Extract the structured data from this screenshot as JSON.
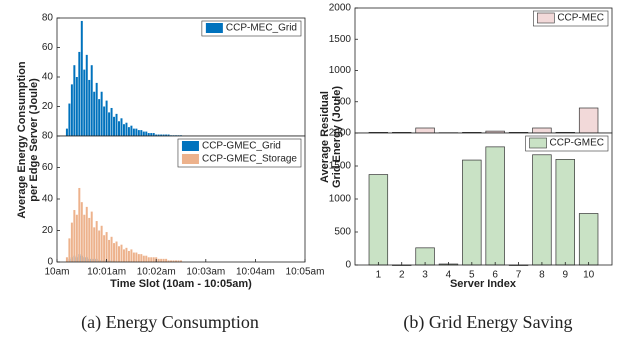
{
  "chart_data": [
    {
      "type": "bar",
      "ylabel": [
        "Average Energy Consumption",
        "per Edge Server (Joule)"
      ],
      "xlim": [
        0,
        5
      ],
      "ylim": [
        0,
        80
      ],
      "yticks": [
        20,
        40,
        60,
        80
      ],
      "x": [
        0.2,
        0.25,
        0.3,
        0.35,
        0.4,
        0.45,
        0.5,
        0.55,
        0.6,
        0.65,
        0.7,
        0.75,
        0.8,
        0.85,
        0.9,
        0.95,
        1.0,
        1.05,
        1.1,
        1.15,
        1.2,
        1.25,
        1.3,
        1.35,
        1.4,
        1.45,
        1.5,
        1.55,
        1.6,
        1.65,
        1.7,
        1.75,
        1.8,
        1.85,
        1.9,
        1.95,
        2.0,
        2.05,
        2.1,
        2.15,
        2.2,
        2.25,
        2.3,
        2.35,
        2.4,
        2.45,
        2.5
      ],
      "series": [
        {
          "name": "CCP-MEC_Grid",
          "color": "#0072bd",
          "values": [
            5,
            22,
            35,
            48,
            40,
            57,
            78,
            45,
            55,
            38,
            48,
            30,
            36,
            25,
            30,
            20,
            24,
            16,
            19,
            13,
            15,
            10,
            12,
            8,
            9,
            6,
            7,
            5,
            5,
            4,
            4,
            3,
            3,
            2,
            2,
            2,
            1,
            1,
            1,
            1,
            1,
            1,
            0.5,
            0.5,
            0.5,
            0.5,
            0.5
          ]
        }
      ]
    },
    {
      "type": "bar",
      "xlabel": "Time Slot (10am - 10:05am)",
      "caption": "(a) Energy Consumption",
      "xlim": [
        0,
        5
      ],
      "ylim": [
        0,
        80
      ],
      "yticks": [
        0,
        20,
        40,
        60,
        80
      ],
      "xticks": [
        {
          "value": 0,
          "label": "10am"
        },
        {
          "value": 1,
          "label": "10:01am"
        },
        {
          "value": 2,
          "label": "10:02am"
        },
        {
          "value": 3,
          "label": "10:03am"
        },
        {
          "value": 4,
          "label": "10:04am"
        },
        {
          "value": 5,
          "label": "10:05am"
        }
      ],
      "x": [
        0.2,
        0.25,
        0.3,
        0.35,
        0.4,
        0.45,
        0.5,
        0.55,
        0.6,
        0.65,
        0.7,
        0.75,
        0.8,
        0.85,
        0.9,
        0.95,
        1.0,
        1.05,
        1.1,
        1.15,
        1.2,
        1.25,
        1.3,
        1.35,
        1.4,
        1.45,
        1.5,
        1.55,
        1.6,
        1.65,
        1.7,
        1.75,
        1.8,
        1.85,
        1.9,
        1.95,
        2.0,
        2.05,
        2.1,
        2.15,
        2.2,
        2.25,
        2.3,
        2.35,
        2.4,
        2.45,
        2.5
      ],
      "series": [
        {
          "name": "CCP-GMEC_Grid",
          "color": "#0072bd",
          "values": [
            0,
            2,
            3,
            4,
            3,
            5,
            4,
            3,
            3,
            2,
            2,
            2,
            2,
            1,
            1,
            1,
            1,
            1,
            1,
            1,
            1,
            0,
            0,
            0,
            0,
            0,
            0,
            0,
            0,
            0,
            0,
            0,
            0,
            0,
            0,
            0,
            0,
            0,
            0,
            0,
            0,
            0,
            0,
            0,
            0,
            0,
            0
          ]
        },
        {
          "name": "CCP-GMEC_Storage",
          "color": "#edb28c",
          "values": [
            3,
            15,
            25,
            33,
            30,
            47,
            38,
            30,
            35,
            28,
            32,
            22,
            26,
            20,
            23,
            17,
            19,
            14,
            16,
            12,
            13,
            10,
            11,
            8,
            9,
            7,
            8,
            6,
            6,
            5,
            5,
            4,
            4,
            3,
            3,
            3,
            3,
            2,
            2,
            2,
            2,
            1,
            1,
            1,
            1,
            1,
            1
          ]
        }
      ]
    },
    {
      "type": "bar",
      "ylabel": [
        "Average Residual",
        "Grid Energy (Joule)"
      ],
      "xlim": [
        0,
        11
      ],
      "ylim": [
        0,
        2000
      ],
      "yticks": [
        500,
        1000,
        1500,
        2000
      ],
      "x": [
        1,
        2,
        3,
        4,
        5,
        6,
        7,
        8,
        9,
        10
      ],
      "series": [
        {
          "name": "CCP-MEC",
          "color": "#f2d9d9",
          "values": [
            10,
            10,
            80,
            5,
            10,
            30,
            10,
            80,
            10,
            400
          ]
        }
      ]
    },
    {
      "type": "bar",
      "xlabel": "Server Index",
      "caption": "(b) Grid Energy Saving",
      "xlim": [
        0,
        11
      ],
      "ylim": [
        0,
        2000
      ],
      "yticks": [
        0,
        500,
        1000,
        1500,
        2000
      ],
      "xticks": [
        1,
        2,
        3,
        4,
        5,
        6,
        7,
        8,
        9,
        10
      ],
      "x": [
        1,
        2,
        3,
        4,
        5,
        6,
        7,
        8,
        9,
        10
      ],
      "series": [
        {
          "name": "CCP-GMEC",
          "color": "#c9e2c5",
          "values": [
            1370,
            0,
            260,
            15,
            1590,
            1790,
            0,
            1670,
            1600,
            780
          ]
        }
      ]
    }
  ]
}
